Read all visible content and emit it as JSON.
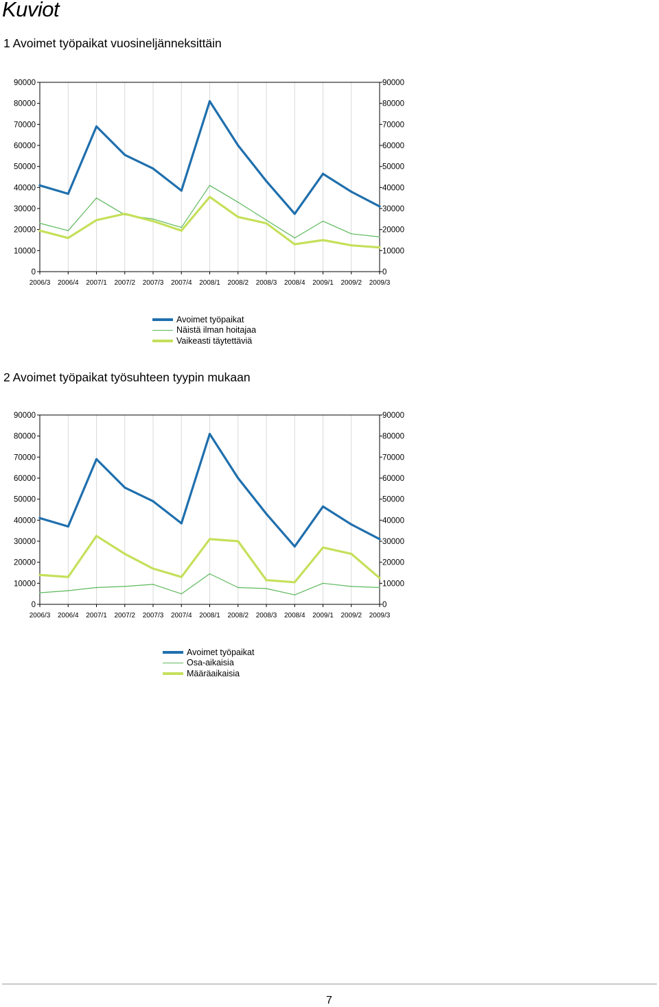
{
  "page": {
    "heading": "Kuviot",
    "page_number": "7"
  },
  "colors": {
    "blue": "#1f6fad",
    "thin_green": "#5cb85c",
    "lime": "#c5e05a",
    "grid": "#d9d9d9",
    "axis": "#000000"
  },
  "chart_data": [
    {
      "type": "line",
      "title": "1 Avoimet työpaikat vuosineljänneksittäin",
      "categories": [
        "2006/3",
        "2006/4",
        "2007/1",
        "2007/2",
        "2007/3",
        "2007/4",
        "2008/1",
        "2008/2",
        "2008/3",
        "2008/4",
        "2009/1",
        "2009/2",
        "2009/3"
      ],
      "ylim": [
        0,
        90000
      ],
      "yticks": [
        "0",
        "10000",
        "20000",
        "30000",
        "40000",
        "50000",
        "60000",
        "70000",
        "80000",
        "90000"
      ],
      "dual_y_axis": true,
      "grid": "vertical",
      "legend": "bottom",
      "series": [
        {
          "name": "Avoimet työpaikat",
          "style": "thick",
          "color": "#1f6fad",
          "values": [
            41000,
            37000,
            69000,
            55500,
            49000,
            38500,
            81000,
            60000,
            43000,
            27500,
            46500,
            38000,
            31000
          ]
        },
        {
          "name": "Näistä ilman hoitajaa",
          "style": "thin",
          "color": "#5cb85c",
          "values": [
            23000,
            19500,
            35000,
            27000,
            25000,
            21000,
            41000,
            33000,
            24500,
            16000,
            24000,
            18000,
            16500
          ]
        },
        {
          "name": "Vaikeasti täytettäviä",
          "style": "thick",
          "color": "#c5e05a",
          "values": [
            19500,
            16000,
            24500,
            27500,
            24000,
            19500,
            35500,
            26000,
            23000,
            13000,
            15000,
            12500,
            11500
          ]
        }
      ]
    },
    {
      "type": "line",
      "title": "2 Avoimet työpaikat työsuhteen tyypin mukaan",
      "categories": [
        "2006/3",
        "2006/4",
        "2007/1",
        "2007/2",
        "2007/3",
        "2007/4",
        "2008/1",
        "2008/2",
        "2008/3",
        "2008/4",
        "2009/1",
        "2009/2",
        "2009/3"
      ],
      "ylim": [
        0,
        90000
      ],
      "yticks": [
        "0",
        "10000",
        "20000",
        "30000",
        "40000",
        "50000",
        "60000",
        "70000",
        "80000",
        "90000"
      ],
      "dual_y_axis": true,
      "grid": "vertical",
      "legend": "bottom",
      "series": [
        {
          "name": "Avoimet työpaikat",
          "style": "thick",
          "color": "#1f6fad",
          "values": [
            41000,
            37000,
            69000,
            55500,
            49000,
            38500,
            81000,
            60000,
            43000,
            27500,
            46500,
            38000,
            31000
          ]
        },
        {
          "name": "Osa-aikaisia",
          "style": "thin",
          "color": "#5cb85c",
          "values": [
            5500,
            6500,
            8000,
            8500,
            9500,
            5000,
            14500,
            8000,
            7500,
            4500,
            10000,
            8500,
            8000
          ]
        },
        {
          "name": "Määräaikaisia",
          "style": "thick",
          "color": "#c5e05a",
          "values": [
            14000,
            13000,
            32500,
            24000,
            17000,
            13000,
            31000,
            30000,
            11500,
            10500,
            27000,
            24000,
            12500
          ]
        }
      ]
    }
  ]
}
